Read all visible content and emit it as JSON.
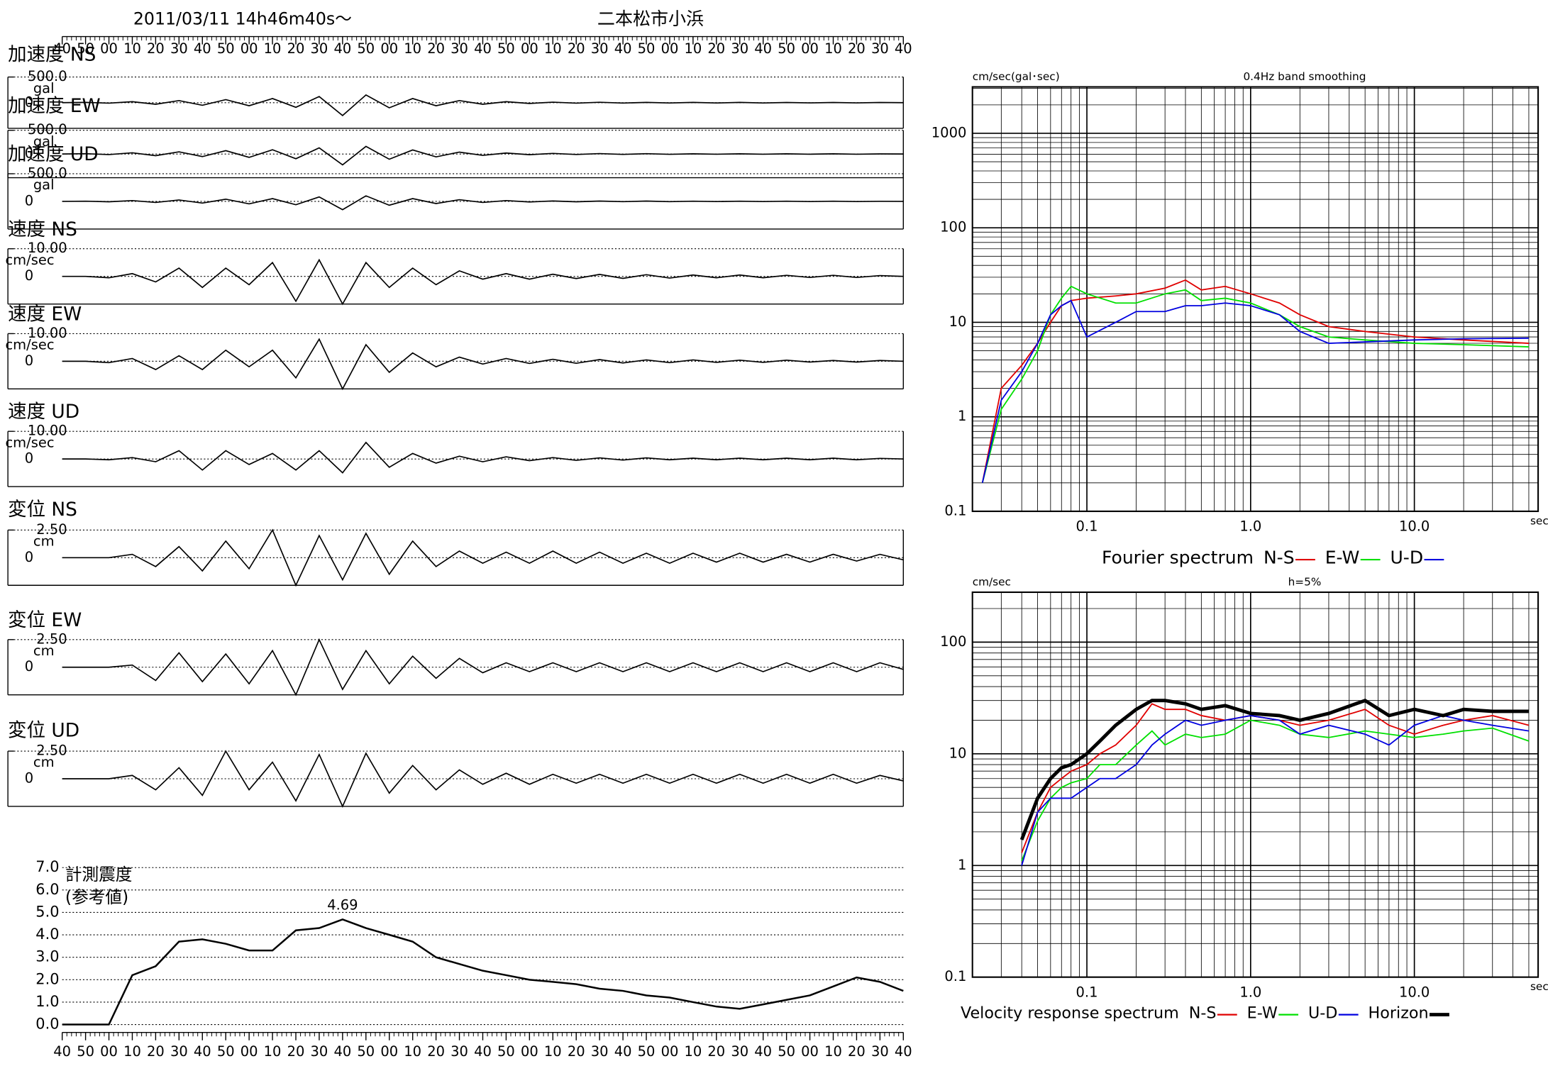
{
  "header": {
    "datetime": "2011/03/11  14h46m40s〜",
    "station": "二本松市小浜"
  },
  "chart_data": [
    {
      "type": "waveforms",
      "xlim": [
        0,
        360
      ],
      "x": [
        0,
        10,
        20,
        30,
        40,
        50,
        60,
        70,
        80,
        90,
        100,
        110,
        120,
        130,
        140,
        150,
        160,
        170,
        180,
        190,
        200,
        210,
        220,
        230,
        240,
        250,
        260,
        270,
        280,
        290,
        300,
        310,
        320,
        330,
        340,
        350,
        360
      ],
      "xticks": [
        {
          "value": 0,
          "label": "40"
        },
        {
          "value": 10,
          "label": "50"
        },
        {
          "value": 20,
          "label": "00"
        },
        {
          "value": 30,
          "label": "10"
        },
        {
          "value": 40,
          "label": "20"
        },
        {
          "value": 50,
          "label": "30"
        },
        {
          "value": 60,
          "label": "40"
        },
        {
          "value": 70,
          "label": "50"
        },
        {
          "value": 80,
          "label": "00"
        },
        {
          "value": 90,
          "label": "10"
        },
        {
          "value": 100,
          "label": "20"
        },
        {
          "value": 110,
          "label": "30"
        },
        {
          "value": 120,
          "label": "40"
        },
        {
          "value": 130,
          "label": "50"
        },
        {
          "value": 140,
          "label": "00"
        },
        {
          "value": 150,
          "label": "10"
        },
        {
          "value": 160,
          "label": "20"
        },
        {
          "value": 170,
          "label": "30"
        },
        {
          "value": 180,
          "label": "40"
        },
        {
          "value": 190,
          "label": "50"
        },
        {
          "value": 200,
          "label": "00"
        },
        {
          "value": 210,
          "label": "10"
        },
        {
          "value": 220,
          "label": "20"
        },
        {
          "value": 230,
          "label": "30"
        },
        {
          "value": 240,
          "label": "40"
        },
        {
          "value": 250,
          "label": "50"
        },
        {
          "value": 260,
          "label": "00"
        },
        {
          "value": 270,
          "label": "10"
        },
        {
          "value": 280,
          "label": "20"
        },
        {
          "value": 290,
          "label": "30"
        },
        {
          "value": 300,
          "label": "40"
        },
        {
          "value": 310,
          "label": "50"
        },
        {
          "value": 320,
          "label": "00"
        },
        {
          "value": 330,
          "label": "10"
        },
        {
          "value": 340,
          "label": "20"
        },
        {
          "value": 350,
          "label": "30"
        },
        {
          "value": 360,
          "label": "40"
        }
      ],
      "traces": [
        {
          "label": "加速度 NS",
          "unit": "gal",
          "ylim": [
            -500,
            500
          ],
          "yticks": [
            {
              "value": 500,
              "label": "500.0"
            },
            0
          ],
          "values": [
            0,
            5,
            -10,
            20,
            -30,
            40,
            -50,
            60,
            -60,
            80,
            -90,
            120,
            -250,
            150,
            -100,
            80,
            -60,
            40,
            -30,
            20,
            -15,
            10,
            -10,
            8,
            -8,
            6,
            -6,
            5,
            -5,
            5,
            -5,
            4,
            -4,
            4,
            -4,
            3,
            0
          ]
        },
        {
          "label": "加速度 EW",
          "unit": "gal",
          "ylim": [
            -500,
            500
          ],
          "yticks": [
            {
              "value": 500,
              "label": "500.0"
            },
            0
          ],
          "values": [
            0,
            6,
            -12,
            25,
            -35,
            45,
            -55,
            70,
            -70,
            90,
            -100,
            130,
            -230,
            160,
            -110,
            85,
            -60,
            40,
            -30,
            20,
            -15,
            12,
            -10,
            8,
            -8,
            6,
            -6,
            5,
            -5,
            5,
            -5,
            4,
            -4,
            4,
            -4,
            3,
            0
          ]
        },
        {
          "label": "加速度 UD",
          "unit": "gal",
          "ylim": [
            -500,
            500
          ],
          "yticks": [
            {
              "value": 500,
              "label": "500.0"
            },
            0
          ],
          "values": [
            0,
            4,
            -8,
            15,
            -20,
            25,
            -30,
            40,
            -45,
            50,
            -60,
            80,
            -150,
            100,
            -70,
            50,
            -40,
            30,
            -20,
            15,
            -10,
            8,
            -8,
            6,
            -6,
            5,
            -5,
            4,
            -4,
            4,
            -4,
            3,
            -3,
            3,
            -3,
            2,
            0
          ]
        },
        {
          "label": "速度 NS",
          "unit": "cm/sec",
          "ylim": [
            -10,
            10
          ],
          "yticks": [
            {
              "value": 10,
              "label": "10.00"
            },
            0
          ],
          "values": [
            0,
            0,
            -0.5,
            1,
            -2,
            3,
            -4,
            3,
            -3,
            5,
            -9,
            6,
            -10,
            5,
            -4,
            3,
            -3,
            2,
            -1,
            1,
            -1,
            0.8,
            -0.8,
            0.7,
            -0.7,
            0.6,
            -0.6,
            0.5,
            -0.5,
            0.5,
            -0.5,
            0.4,
            -0.4,
            0.4,
            -0.4,
            0.3,
            0
          ]
        },
        {
          "label": "速度 EW",
          "unit": "cm/sec",
          "ylim": [
            -10,
            10
          ],
          "yticks": [
            {
              "value": 10,
              "label": "10.00"
            },
            0
          ],
          "values": [
            0,
            0,
            -0.5,
            1,
            -3,
            2,
            -3,
            4,
            -2,
            4,
            -6,
            8,
            -10,
            6,
            -4,
            3,
            -2,
            1.5,
            -1,
            1,
            -0.8,
            0.7,
            -0.7,
            0.6,
            -0.6,
            0.5,
            -0.5,
            0.5,
            -0.4,
            0.4,
            -0.4,
            0.4,
            -0.3,
            0.3,
            -0.3,
            0.3,
            0
          ]
        },
        {
          "label": "速度 UD",
          "unit": "cm/sec",
          "ylim": [
            -10,
            10
          ],
          "yticks": [
            {
              "value": 10,
              "label": "10.00"
            },
            0
          ],
          "values": [
            0,
            0,
            -0.3,
            0.5,
            -1,
            3,
            -4,
            3,
            -2,
            2,
            -4,
            3,
            -5,
            6,
            -3,
            2,
            -1.5,
            1,
            -1,
            0.8,
            -0.6,
            0.5,
            -0.5,
            0.4,
            -0.4,
            0.4,
            -0.3,
            0.3,
            -0.3,
            0.3,
            -0.3,
            0.3,
            -0.3,
            0.3,
            -0.3,
            0.2,
            0
          ]
        },
        {
          "label": "変位 NS",
          "unit": "cm",
          "ylim": [
            -2.5,
            2.5
          ],
          "yticks": [
            {
              "value": 2.5,
              "label": "2.50"
            },
            0
          ],
          "values": [
            0,
            0,
            0,
            0.3,
            -0.8,
            1,
            -1.2,
            1.5,
            -1,
            2.5,
            -2.5,
            2,
            -2,
            2.2,
            -1.5,
            1.5,
            -0.8,
            0.6,
            -0.5,
            0.5,
            -0.5,
            0.6,
            -0.5,
            0.5,
            -0.5,
            0.4,
            -0.5,
            0.4,
            -0.4,
            0.4,
            -0.4,
            0.3,
            -0.4,
            0.3,
            -0.3,
            0.3,
            -0.2
          ]
        },
        {
          "label": "変位 EW",
          "unit": "cm",
          "ylim": [
            -2.5,
            2.5
          ],
          "yticks": [
            {
              "value": 2.5,
              "label": "2.50"
            },
            0
          ],
          "values": [
            0,
            0,
            0,
            0.2,
            -1.2,
            1.3,
            -1.3,
            1.2,
            -1.5,
            1.5,
            -2.5,
            2.5,
            -2,
            1.5,
            -1.5,
            1,
            -1,
            0.8,
            -0.5,
            0.4,
            -0.4,
            0.4,
            -0.4,
            0.4,
            -0.4,
            0.4,
            -0.4,
            0.4,
            -0.4,
            0.4,
            -0.4,
            0.4,
            -0.4,
            0.4,
            -0.4,
            0.4,
            -0.2
          ]
        },
        {
          "label": "変位 UD",
          "unit": "cm",
          "ylim": [
            -2.5,
            2.5
          ],
          "yticks": [
            {
              "value": 2.5,
              "label": "2.50"
            },
            0
          ],
          "values": [
            0,
            0,
            0,
            0.3,
            -1,
            1,
            -1.5,
            2.5,
            -1,
            1.5,
            -2,
            2.2,
            -2.5,
            2.3,
            -1.3,
            1.2,
            -1,
            0.8,
            -0.5,
            0.5,
            -0.5,
            0.4,
            -0.4,
            0.4,
            -0.4,
            0.4,
            -0.4,
            0.4,
            -0.4,
            0.4,
            -0.4,
            0.4,
            -0.4,
            0.4,
            -0.4,
            0.3,
            -0.2
          ]
        }
      ]
    },
    {
      "type": "line",
      "title": "計測震度",
      "subtitle": "(参考値)",
      "annotation": "4.69",
      "xlim": [
        0,
        360
      ],
      "ylim": [
        0,
        7
      ],
      "yticks": [
        {
          "value": 0,
          "label": "0.0"
        },
        {
          "value": 1,
          "label": "1.0"
        },
        {
          "value": 2,
          "label": "2.0"
        },
        {
          "value": 3,
          "label": "3.0"
        },
        {
          "value": 4,
          "label": "4.0"
        },
        {
          "value": 5,
          "label": "5.0"
        },
        {
          "value": 6,
          "label": "6.0"
        },
        {
          "value": 7,
          "label": "7.0"
        }
      ],
      "x": [
        0,
        10,
        20,
        30,
        40,
        50,
        60,
        70,
        80,
        90,
        100,
        110,
        120,
        130,
        140,
        150,
        160,
        170,
        180,
        190,
        200,
        210,
        220,
        230,
        240,
        250,
        260,
        270,
        280,
        290,
        300,
        310,
        320,
        330,
        340,
        350,
        360
      ],
      "values": [
        0,
        0,
        0,
        2.2,
        2.6,
        3.7,
        3.8,
        3.6,
        3.3,
        3.3,
        4.2,
        4.3,
        4.69,
        4.3,
        4.0,
        3.7,
        3.0,
        2.7,
        2.4,
        2.2,
        2.0,
        1.9,
        1.8,
        1.6,
        1.5,
        1.3,
        1.2,
        1.0,
        0.8,
        0.7,
        0.9,
        1.1,
        1.3,
        1.7,
        2.1,
        1.9,
        1.5
      ],
      "color": "#000000"
    },
    {
      "type": "loglog",
      "title": "Fourier spectrum",
      "subtitle": "0.4Hz band smoothing",
      "ylabel": "cm/sec(gal･sec)",
      "xlabel": "sec",
      "xlim": [
        0.02,
        57
      ],
      "ylim": [
        0.1,
        3100
      ],
      "log_x": true,
      "log_y": true,
      "grid": true,
      "xticks": [
        0.1,
        {
          "value": 1,
          "label": "1.0"
        },
        {
          "value": 10,
          "label": "10.0"
        }
      ],
      "yticks": [
        0.1,
        1,
        10,
        100,
        1000
      ],
      "x": [
        0.023,
        0.03,
        0.04,
        0.05,
        0.06,
        0.07,
        0.08,
        0.1,
        0.15,
        0.2,
        0.3,
        0.4,
        0.5,
        0.7,
        1.0,
        1.5,
        2,
        3,
        5,
        10,
        20,
        50
      ],
      "series": [
        {
          "name": "N-S",
          "color": "#e00000",
          "values": [
            0.2,
            2,
            3.5,
            6,
            10,
            15,
            17,
            18,
            19,
            20,
            23,
            28,
            22,
            24,
            20,
            16,
            12,
            9,
            8,
            7,
            6.5,
            6
          ]
        },
        {
          "name": "E-W",
          "color": "#00e000",
          "values": [
            0.2,
            1.2,
            2.5,
            5,
            12,
            18,
            24,
            20,
            16,
            16,
            20,
            22,
            17,
            18,
            16,
            12,
            9,
            7,
            6.5,
            6,
            5.8,
            5.5
          ]
        },
        {
          "name": "U-D",
          "color": "#0000e0",
          "values": [
            0.2,
            1.5,
            3,
            6,
            12,
            15,
            17,
            7,
            10,
            13,
            13,
            15,
            15,
            16,
            15,
            12,
            8,
            6,
            6.2,
            6.5,
            6.7,
            6.8
          ]
        }
      ]
    },
    {
      "type": "loglog",
      "title": "Velocity response spectrum",
      "subtitle": "h=5%",
      "ylabel": "cm/sec",
      "xlabel": "sec",
      "xlim": [
        0.02,
        57
      ],
      "ylim": [
        0.1,
        280
      ],
      "log_x": true,
      "log_y": true,
      "grid": true,
      "xticks": [
        0.1,
        {
          "value": 1,
          "label": "1.0"
        },
        {
          "value": 10,
          "label": "10.0"
        }
      ],
      "yticks": [
        0.1,
        1,
        10,
        100
      ],
      "x": [
        0.04,
        0.05,
        0.06,
        0.07,
        0.08,
        0.1,
        0.12,
        0.15,
        0.2,
        0.25,
        0.3,
        0.4,
        0.5,
        0.7,
        1.0,
        1.5,
        2,
        3,
        5,
        7,
        10,
        15,
        20,
        30,
        50
      ],
      "series": [
        {
          "name": "N-S",
          "color": "#e00000",
          "values": [
            1.3,
            3,
            5,
            6,
            7,
            8,
            10,
            12,
            18,
            28,
            25,
            25,
            22,
            20,
            22,
            20,
            18,
            20,
            25,
            18,
            15,
            18,
            20,
            22,
            18
          ]
        },
        {
          "name": "E-W",
          "color": "#00e000",
          "values": [
            1.1,
            2.5,
            4,
            5,
            5.5,
            6,
            8,
            8,
            12,
            16,
            12,
            15,
            14,
            15,
            20,
            18,
            15,
            14,
            16,
            15,
            14,
            15,
            16,
            17,
            13
          ]
        },
        {
          "name": "U-D",
          "color": "#0000e0",
          "values": [
            1.0,
            3,
            4,
            4,
            4,
            5,
            6,
            6,
            8,
            12,
            15,
            20,
            18,
            20,
            22,
            20,
            15,
            18,
            15,
            12,
            18,
            22,
            20,
            18,
            16
          ]
        },
        {
          "name": "Horizon",
          "color": "#000000",
          "values": [
            1.7,
            4,
            6,
            7.5,
            8,
            10,
            13,
            18,
            25,
            30,
            30,
            28,
            25,
            27,
            23,
            22,
            20,
            23,
            30,
            22,
            25,
            22,
            25,
            24,
            24
          ]
        }
      ]
    }
  ]
}
